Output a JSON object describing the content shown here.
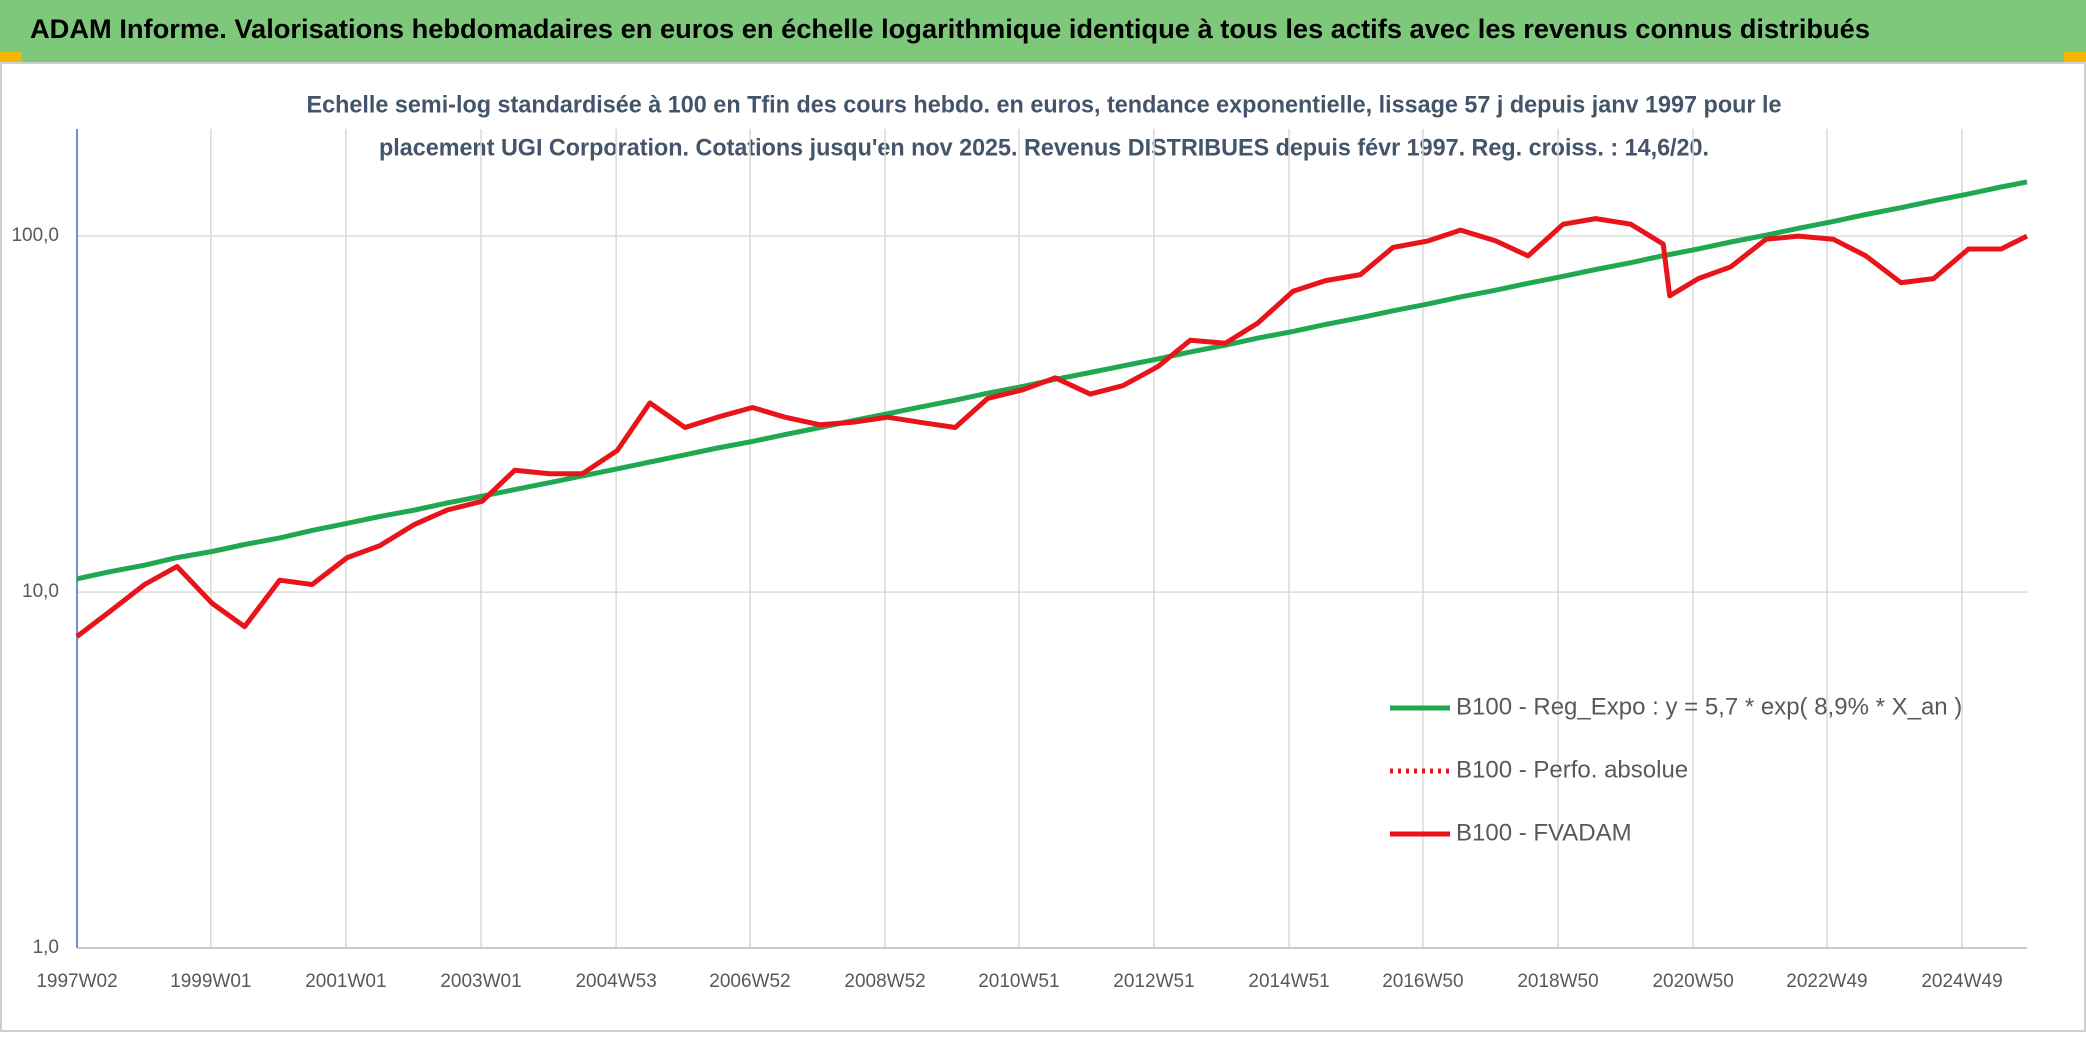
{
  "chart_data": {
    "type": "line",
    "title": "ADAM Informe. Valorisations hebdomadaires en euros en échelle logarithmique identique à tous les actifs avec les revenus connus distribués",
    "subtitle": [
      "Echelle semi-log standardisée à 100 en Tfin des cours hebdo. en euros, tendance exponentielle, lissage 57 j depuis janv 1997 pour le",
      "placement UGI Corporation. Cotations jusqu'en nov 2025. Revenus DISTRIBUES depuis févr 1997. Reg. croiss. : 14,6/20."
    ],
    "log_y": true,
    "grid": true,
    "legend_position": "right",
    "x": [
      "1997W02",
      "1997W27",
      "1998W02",
      "1998W27",
      "1999W02",
      "1999W27",
      "2000W02",
      "2000W27",
      "2001W02",
      "2001W27",
      "2002W02",
      "2002W27",
      "2003W02",
      "2003W27",
      "2004W02",
      "2004W27",
      "2005W02",
      "2005W27",
      "2006W02",
      "2006W27",
      "2007W02",
      "2007W27",
      "2008W02",
      "2008W27",
      "2009W02",
      "2009W27",
      "2010W02",
      "2010W27",
      "2011W02",
      "2011W27",
      "2012W02",
      "2012W27",
      "2013W02",
      "2013W27",
      "2014W02",
      "2014W27",
      "2015W02",
      "2015W27",
      "2016W02",
      "2016W27",
      "2017W02",
      "2017W27",
      "2018W02",
      "2018W27",
      "2019W02",
      "2019W27",
      "2020W02",
      "2020W27",
      "2020W32",
      "2021W02",
      "2021W27",
      "2022W02",
      "2022W27",
      "2023W02",
      "2023W27",
      "2024W02",
      "2024W27",
      "2025W02",
      "2025W27",
      "2025W47"
    ],
    "xlim": [
      "1997W02",
      "2025W47"
    ],
    "xticks": [
      "1997W02",
      "1999W01",
      "2001W01",
      "2003W01",
      "2004W53",
      "2006W52",
      "2008W52",
      "2010W51",
      "2012W51",
      "2014W51",
      "2016W50",
      "2018W50",
      "2020W50",
      "2022W49",
      "2024W49"
    ],
    "ylim": [
      1,
      200
    ],
    "yticks": [
      {
        "value": 1,
        "label": "1,0"
      },
      {
        "value": 10,
        "label": "10,0"
      },
      {
        "value": 100,
        "label": "100,0"
      }
    ],
    "series": [
      {
        "name": "B100 - Reg_Expo : y = 5,7 * exp( 8,9% *  X_an )",
        "color": "#1fa84f",
        "style": "solid",
        "values": [
          10.9,
          11.4,
          11.9,
          12.5,
          13.0,
          13.6,
          14.2,
          14.9,
          15.6,
          16.3,
          17.0,
          17.8,
          18.6,
          19.4,
          20.3,
          21.2,
          22.2,
          23.2,
          24.3,
          25.4,
          26.5,
          27.7,
          29.0,
          30.3,
          31.7,
          33.1,
          34.6,
          36.2,
          37.8,
          39.6,
          41.4,
          43.2,
          45.2,
          47.3,
          49.4,
          51.7,
          54.0,
          56.5,
          59.0,
          61.7,
          64.5,
          67.5,
          70.5,
          73.7,
          77.1,
          80.6,
          84.2,
          88.1,
          88.8,
          92.1,
          96.3,
          100.6,
          105.2,
          110.0,
          115.0,
          120.2,
          125.7,
          131.4,
          137.4,
          142
        ]
      },
      {
        "name": "B100 - Perfo. absolue",
        "color": "#e8141a",
        "style": "dotted",
        "values": [
          7.5,
          8.8,
          10.5,
          11.8,
          9.3,
          8.0,
          10.8,
          10.5,
          12.5,
          13.5,
          15.5,
          17,
          18,
          22,
          21.5,
          21.5,
          25,
          34,
          29,
          31,
          33,
          31,
          29.5,
          30,
          31,
          30,
          29,
          35,
          37,
          40,
          36,
          38,
          43,
          51,
          50,
          57,
          70,
          75,
          78,
          93,
          97,
          104,
          97,
          88,
          108,
          112,
          108,
          95,
          68,
          76,
          82,
          98,
          100,
          98,
          88,
          74,
          76,
          92,
          92,
          100
        ]
      },
      {
        "name": "B100 - FVADAM",
        "color": "#e8141a",
        "style": "solid",
        "values": [
          7.5,
          8.8,
          10.5,
          11.8,
          9.3,
          8.0,
          10.8,
          10.5,
          12.5,
          13.5,
          15.5,
          17,
          18,
          22,
          21.5,
          21.5,
          25,
          34,
          29,
          31,
          33,
          31,
          29.5,
          30,
          31,
          30,
          29,
          35,
          37,
          40,
          36,
          38,
          43,
          51,
          50,
          57,
          70,
          75,
          78,
          93,
          97,
          104,
          97,
          88,
          108,
          112,
          108,
          95,
          68,
          76,
          82,
          98,
          100,
          98,
          88,
          74,
          76,
          92,
          92,
          100
        ]
      }
    ]
  }
}
